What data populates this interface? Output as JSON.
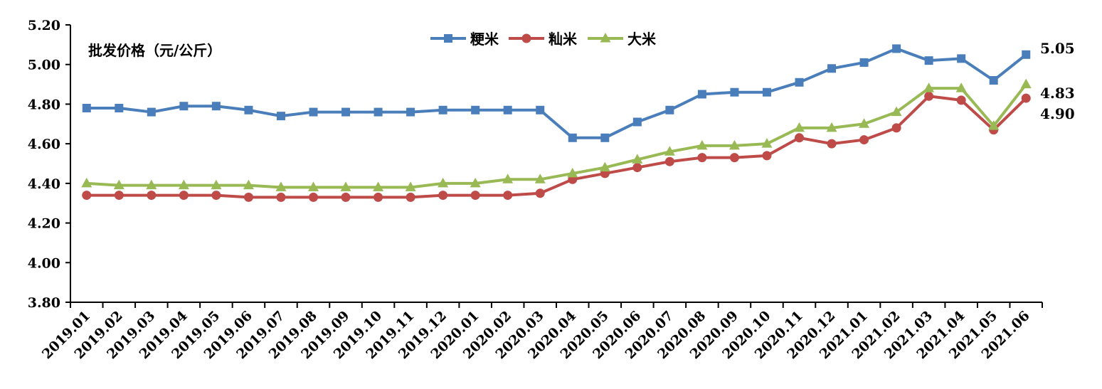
{
  "chart_data": {
    "type": "line",
    "ylabel": "批发价格（元/公斤）",
    "ylim": [
      3.8,
      5.2
    ],
    "y_ticks": [
      "3.80",
      "4.00",
      "4.20",
      "4.40",
      "4.60",
      "4.80",
      "5.00",
      "5.20"
    ],
    "categories": [
      "2019.01",
      "2019.02",
      "2019.03",
      "2019.04",
      "2019.05",
      "2019.06",
      "2019.07",
      "2019.08",
      "2019.09",
      "2019.10",
      "2019.11",
      "2019.12",
      "2020.01",
      "2020.02",
      "2020.03",
      "2020.04",
      "2020.05",
      "2020.06",
      "2020.07",
      "2020.08",
      "2020.09",
      "2020.10",
      "2020.11",
      "2020.12",
      "2021.01",
      "2021.02",
      "2021.03",
      "2021.04",
      "2021.05",
      "2021.06"
    ],
    "legend_position": "top-center",
    "grid": false,
    "series": [
      {
        "name": "粳米",
        "color": "#4a7ebb",
        "marker": "square",
        "values": [
          4.78,
          4.78,
          4.76,
          4.79,
          4.79,
          4.77,
          4.74,
          4.76,
          4.76,
          4.76,
          4.76,
          4.77,
          4.77,
          4.77,
          4.77,
          4.63,
          4.63,
          4.71,
          4.77,
          4.85,
          4.86,
          4.86,
          4.91,
          4.98,
          5.01,
          5.08,
          5.02,
          5.03,
          4.92,
          5.05
        ]
      },
      {
        "name": "籼米",
        "color": "#be4b48",
        "marker": "circle",
        "values": [
          4.34,
          4.34,
          4.34,
          4.34,
          4.34,
          4.33,
          4.33,
          4.33,
          4.33,
          4.33,
          4.33,
          4.34,
          4.34,
          4.34,
          4.35,
          4.42,
          4.45,
          4.48,
          4.51,
          4.53,
          4.53,
          4.54,
          4.63,
          4.6,
          4.62,
          4.68,
          4.84,
          4.82,
          4.67,
          4.83
        ]
      },
      {
        "name": "大米",
        "color": "#98b954",
        "marker": "triangle",
        "values": [
          4.4,
          4.39,
          4.39,
          4.39,
          4.39,
          4.39,
          4.38,
          4.38,
          4.38,
          4.38,
          4.38,
          4.4,
          4.4,
          4.42,
          4.42,
          4.45,
          4.48,
          4.52,
          4.56,
          4.59,
          4.59,
          4.6,
          4.68,
          4.68,
          4.7,
          4.76,
          4.88,
          4.88,
          4.69,
          4.9
        ]
      }
    ],
    "annotations": [
      "5.05",
      "4.83",
      "4.90"
    ]
  }
}
